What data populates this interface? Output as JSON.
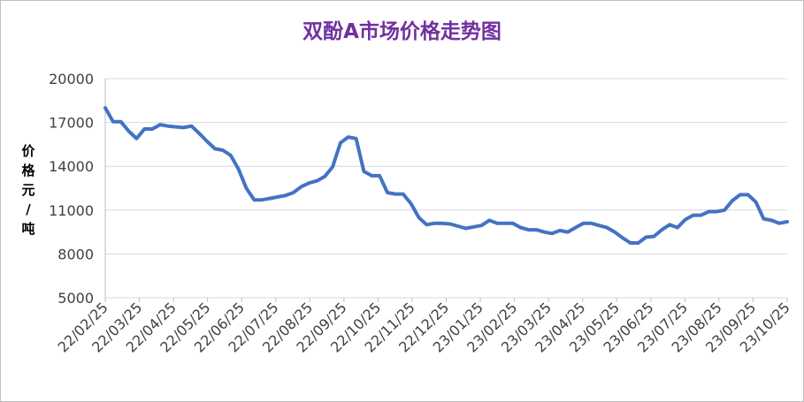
{
  "chart_data": {
    "type": "line",
    "title": "双酚A市场价格走势图",
    "ylabel": "价格元/吨",
    "ylabel_chars": [
      "价",
      "格",
      "元",
      "/",
      "吨"
    ],
    "xlabel": "",
    "ylim": [
      5000,
      20000
    ],
    "yticks": [
      5000,
      8000,
      11000,
      14000,
      17000,
      20000
    ],
    "ytick_labels": [
      "5000",
      "8000",
      "11000",
      "14000",
      "17000",
      "20000"
    ],
    "xtick_labels": [
      "22/02/25",
      "22/03/25",
      "22/04/25",
      "22/05/25",
      "22/06/25",
      "22/07/25",
      "22/08/25",
      "22/09/25",
      "22/10/25",
      "22/11/25",
      "22/12/25",
      "23/01/25",
      "23/02/25",
      "23/03/25",
      "23/04/25",
      "23/05/25",
      "23/06/25",
      "23/07/25",
      "23/08/25",
      "23/09/25",
      "23/10/25"
    ],
    "grid": true,
    "line_color": "#4472c4",
    "series": [
      {
        "values": [
          18000,
          17050,
          17050,
          16400,
          15900,
          16550,
          16550,
          16850,
          16750,
          16700,
          16650,
          16750,
          16250,
          15700,
          15200,
          15100,
          14750,
          13800,
          12500,
          11700,
          11700,
          11800,
          11900,
          12000,
          12200,
          12600,
          12850,
          13000,
          13300,
          13950,
          15600,
          16000,
          15900,
          13650,
          13350,
          13350,
          12200,
          12100,
          12100,
          11450,
          10500,
          10000,
          10100,
          10100,
          10050,
          9900,
          9750,
          9850,
          9950,
          10300,
          10100,
          10100,
          10100,
          9800,
          9650,
          9650,
          9500,
          9400,
          9600,
          9500,
          9800,
          10100,
          10100,
          9950,
          9800,
          9500,
          9100,
          8750,
          8750,
          9150,
          9200,
          9650,
          10000,
          9800,
          10350,
          10650,
          10650,
          10900,
          10900,
          11000,
          11650,
          12050,
          12050,
          11550,
          10400,
          10300,
          10100,
          10200
        ]
      }
    ]
  },
  "colors": {
    "title": "#7030a0",
    "line": "#4472c4",
    "grid": "#d9d9d9",
    "axis": "#bfbfbf"
  }
}
